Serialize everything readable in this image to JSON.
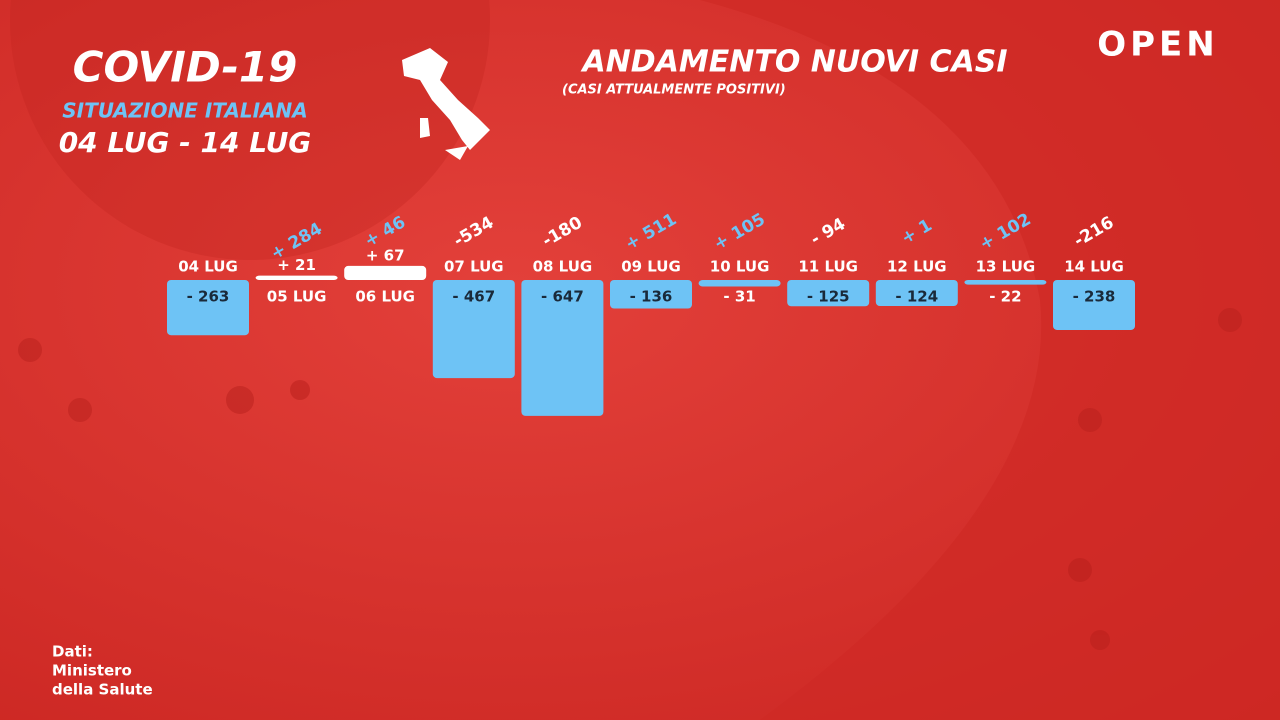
{
  "header": {
    "title": "COVID-19",
    "subtitle": "SITUAZIONE ITALIANA",
    "period": "04 LUG - 14 LUG",
    "logo": "OPEN"
  },
  "source": [
    "Dati:",
    "Ministero",
    "della Salute"
  ],
  "chart_data": {
    "type": "bar",
    "title": "ANDAMENTO NUOVI CASI",
    "subtitle": "(CASI ATTUALMENTE POSITIVI)",
    "categories": [
      "04 LUG",
      "05 LUG",
      "06 LUG",
      "07 LUG",
      "08 LUG",
      "09 LUG",
      "10 LUG",
      "11 LUG",
      "12 LUG",
      "13 LUG",
      "14 LUG"
    ],
    "values": [
      -263,
      21,
      67,
      -467,
      -647,
      -136,
      -31,
      -125,
      -124,
      -22,
      -238
    ],
    "value_labels": [
      "- 263",
      "+ 21",
      "+ 67",
      "- 467",
      "- 647",
      "- 136",
      "- 31",
      "- 125",
      "- 124",
      "- 22",
      "- 238"
    ],
    "negative_color": "#6ec3f5",
    "positive_color": "#ffffff",
    "changes": {
      "values": [
        null,
        284,
        46,
        -534,
        -180,
        511,
        105,
        -94,
        1,
        102,
        -216
      ],
      "labels": [
        null,
        "+ 284",
        "+ 46",
        "-534",
        "-180",
        "+ 511",
        "+ 105",
        "- 94",
        "+ 1",
        "+ 102",
        "-216"
      ],
      "increase_color": "#6ec3f5",
      "decrease_color": "#ffffff"
    }
  }
}
